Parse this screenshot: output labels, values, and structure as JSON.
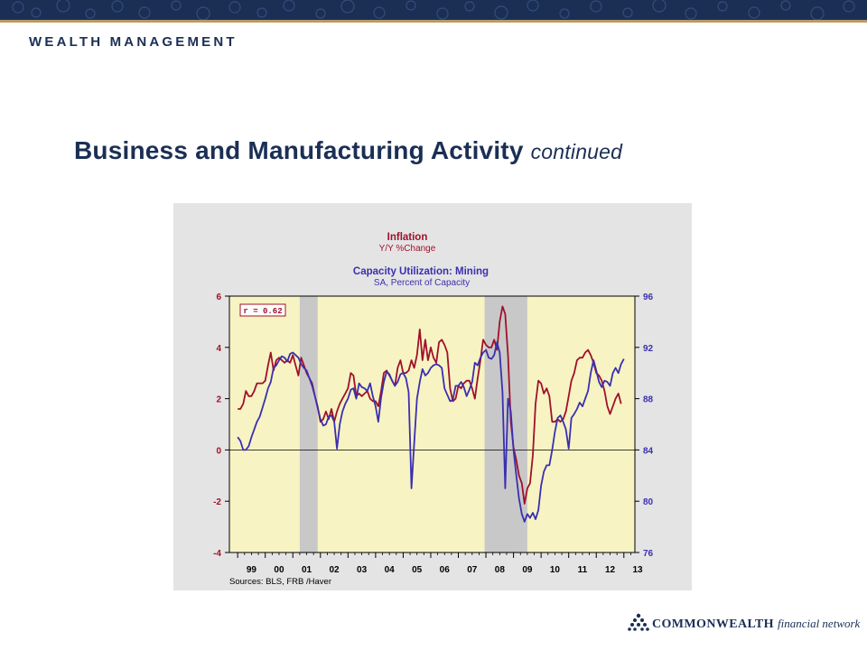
{
  "header": {
    "brand": "WEALTH MANAGEMENT"
  },
  "slide": {
    "title": "Business and Manufacturing Activity",
    "title_suffix": "continued"
  },
  "footer": {
    "company": "COMMONWEALTH",
    "tagline": "financial network"
  },
  "colors": {
    "navy": "#1b2f55",
    "inflation": "#a0102a",
    "capacity": "#3a2fb0",
    "plot_bg": "#f7f3c3",
    "recession": "#c8c8c8"
  },
  "chart_data": {
    "type": "line",
    "title": "Inflation",
    "subtitle": "Y/Y %Change",
    "title2": "Capacity Utilization: Mining",
    "subtitle2": "SA, Percent of Capacity",
    "annotation": "r = 0.62",
    "source": "Sources:  BLS, FRB /Haver",
    "x_tick_labels": [
      "99",
      "00",
      "01",
      "02",
      "03",
      "04",
      "05",
      "06",
      "07",
      "08",
      "09",
      "10",
      "11",
      "12",
      "13"
    ],
    "xlim": [
      1998.7,
      2013.4
    ],
    "left_axis": {
      "ylim": [
        -4,
        6
      ],
      "ticks": [
        "-4",
        "-2",
        "0",
        "2",
        "4",
        "6"
      ]
    },
    "right_axis": {
      "ylim": [
        76,
        96
      ],
      "ticks": [
        "76",
        "80",
        "84",
        "88",
        "92",
        "96"
      ]
    },
    "recession_shading": [
      [
        2001.25,
        2001.9
      ],
      [
        2007.95,
        2009.5
      ]
    ],
    "legend": "none",
    "series": [
      {
        "name": "Inflation",
        "axis": "left",
        "points": [
          [
            1999.0,
            1.6
          ],
          [
            1999.1,
            1.6
          ],
          [
            1999.2,
            1.8
          ],
          [
            1999.3,
            2.3
          ],
          [
            1999.4,
            2.1
          ],
          [
            1999.5,
            2.1
          ],
          [
            1999.6,
            2.3
          ],
          [
            1999.7,
            2.6
          ],
          [
            1999.9,
            2.6
          ],
          [
            2000.0,
            2.7
          ],
          [
            2000.1,
            3.3
          ],
          [
            2000.2,
            3.8
          ],
          [
            2000.3,
            3.1
          ],
          [
            2000.4,
            3.5
          ],
          [
            2000.5,
            3.6
          ],
          [
            2000.6,
            3.5
          ],
          [
            2000.7,
            3.4
          ],
          [
            2000.8,
            3.5
          ],
          [
            2000.9,
            3.4
          ],
          [
            2001.0,
            3.7
          ],
          [
            2001.1,
            3.3
          ],
          [
            2001.2,
            2.9
          ],
          [
            2001.3,
            3.6
          ],
          [
            2001.4,
            3.3
          ],
          [
            2001.5,
            3.0
          ],
          [
            2001.6,
            2.8
          ],
          [
            2001.7,
            2.6
          ],
          [
            2001.8,
            2.1
          ],
          [
            2001.9,
            1.7
          ],
          [
            2002.0,
            1.1
          ],
          [
            2002.1,
            1.2
          ],
          [
            2002.2,
            1.5
          ],
          [
            2002.3,
            1.2
          ],
          [
            2002.4,
            1.6
          ],
          [
            2002.5,
            1.1
          ],
          [
            2002.6,
            1.5
          ],
          [
            2002.7,
            1.8
          ],
          [
            2002.8,
            2.0
          ],
          [
            2002.9,
            2.2
          ],
          [
            2003.0,
            2.4
          ],
          [
            2003.1,
            3.0
          ],
          [
            2003.2,
            2.9
          ],
          [
            2003.3,
            2.1
          ],
          [
            2003.4,
            2.2
          ],
          [
            2003.5,
            2.1
          ],
          [
            2003.6,
            2.2
          ],
          [
            2003.7,
            2.3
          ],
          [
            2003.8,
            2.0
          ],
          [
            2003.9,
            1.9
          ],
          [
            2004.0,
            1.9
          ],
          [
            2004.1,
            1.7
          ],
          [
            2004.2,
            2.3
          ],
          [
            2004.3,
            3.0
          ],
          [
            2004.4,
            3.1
          ],
          [
            2004.5,
            2.9
          ],
          [
            2004.6,
            2.7
          ],
          [
            2004.7,
            2.5
          ],
          [
            2004.8,
            3.2
          ],
          [
            2004.9,
            3.5
          ],
          [
            2005.0,
            3.0
          ],
          [
            2005.1,
            3.0
          ],
          [
            2005.2,
            3.1
          ],
          [
            2005.3,
            3.5
          ],
          [
            2005.4,
            3.2
          ],
          [
            2005.5,
            3.7
          ],
          [
            2005.6,
            4.7
          ],
          [
            2005.7,
            3.5
          ],
          [
            2005.8,
            4.3
          ],
          [
            2005.9,
            3.5
          ],
          [
            2006.0,
            4.0
          ],
          [
            2006.1,
            3.6
          ],
          [
            2006.2,
            3.4
          ],
          [
            2006.3,
            4.2
          ],
          [
            2006.4,
            4.3
          ],
          [
            2006.5,
            4.1
          ],
          [
            2006.6,
            3.8
          ],
          [
            2006.7,
            2.4
          ],
          [
            2006.8,
            1.9
          ],
          [
            2006.9,
            2.0
          ],
          [
            2007.0,
            2.5
          ],
          [
            2007.1,
            2.4
          ],
          [
            2007.2,
            2.6
          ],
          [
            2007.3,
            2.7
          ],
          [
            2007.4,
            2.7
          ],
          [
            2007.5,
            2.4
          ],
          [
            2007.6,
            2.0
          ],
          [
            2007.7,
            2.8
          ],
          [
            2007.8,
            3.5
          ],
          [
            2007.9,
            4.3
          ],
          [
            2008.0,
            4.1
          ],
          [
            2008.1,
            4.0
          ],
          [
            2008.2,
            4.0
          ],
          [
            2008.3,
            4.3
          ],
          [
            2008.4,
            3.9
          ],
          [
            2008.5,
            5.0
          ],
          [
            2008.6,
            5.6
          ],
          [
            2008.7,
            5.3
          ],
          [
            2008.8,
            3.7
          ],
          [
            2008.9,
            1.1
          ],
          [
            2009.0,
            0.1
          ],
          [
            2009.1,
            -0.4
          ],
          [
            2009.2,
            -1.0
          ],
          [
            2009.3,
            -1.3
          ],
          [
            2009.4,
            -2.1
          ],
          [
            2009.5,
            -1.5
          ],
          [
            2009.6,
            -1.3
          ],
          [
            2009.7,
            -0.2
          ],
          [
            2009.8,
            1.8
          ],
          [
            2009.9,
            2.7
          ],
          [
            2010.0,
            2.6
          ],
          [
            2010.1,
            2.2
          ],
          [
            2010.2,
            2.4
          ],
          [
            2010.3,
            2.1
          ],
          [
            2010.4,
            1.1
          ],
          [
            2010.5,
            1.1
          ],
          [
            2010.6,
            1.2
          ],
          [
            2010.7,
            1.1
          ],
          [
            2010.8,
            1.2
          ],
          [
            2010.9,
            1.5
          ],
          [
            2011.0,
            2.1
          ],
          [
            2011.1,
            2.7
          ],
          [
            2011.2,
            3.0
          ],
          [
            2011.3,
            3.5
          ],
          [
            2011.4,
            3.6
          ],
          [
            2011.5,
            3.6
          ],
          [
            2011.6,
            3.8
          ],
          [
            2011.7,
            3.9
          ],
          [
            2011.8,
            3.7
          ],
          [
            2011.9,
            3.4
          ],
          [
            2012.0,
            3.0
          ],
          [
            2012.1,
            2.9
          ],
          [
            2012.2,
            2.7
          ],
          [
            2012.3,
            2.3
          ],
          [
            2012.4,
            1.7
          ],
          [
            2012.5,
            1.4
          ],
          [
            2012.6,
            1.7
          ],
          [
            2012.7,
            2.0
          ],
          [
            2012.8,
            2.2
          ],
          [
            2012.9,
            1.8
          ]
        ]
      },
      {
        "name": "Capacity Utilization: Mining",
        "axis": "right",
        "points": [
          [
            1999.0,
            85.0
          ],
          [
            1999.1,
            84.7
          ],
          [
            1999.2,
            84.0
          ],
          [
            1999.3,
            84.0
          ],
          [
            1999.4,
            84.3
          ],
          [
            1999.5,
            85.0
          ],
          [
            1999.6,
            85.6
          ],
          [
            1999.7,
            86.2
          ],
          [
            1999.8,
            86.6
          ],
          [
            1999.9,
            87.3
          ],
          [
            2000.0,
            88.0
          ],
          [
            2000.1,
            88.8
          ],
          [
            2000.2,
            89.3
          ],
          [
            2000.3,
            90.4
          ],
          [
            2000.4,
            90.6
          ],
          [
            2000.5,
            91.0
          ],
          [
            2000.6,
            91.3
          ],
          [
            2000.7,
            91.2
          ],
          [
            2000.8,
            90.9
          ],
          [
            2000.9,
            91.5
          ],
          [
            2001.0,
            91.6
          ],
          [
            2001.1,
            91.4
          ],
          [
            2001.2,
            91.2
          ],
          [
            2001.3,
            90.7
          ],
          [
            2001.4,
            90.4
          ],
          [
            2001.5,
            90.2
          ],
          [
            2001.6,
            89.6
          ],
          [
            2001.7,
            89.0
          ],
          [
            2001.8,
            88.2
          ],
          [
            2001.9,
            87.3
          ],
          [
            2002.0,
            86.4
          ],
          [
            2002.1,
            85.9
          ],
          [
            2002.2,
            86.0
          ],
          [
            2002.3,
            86.6
          ],
          [
            2002.4,
            86.7
          ],
          [
            2002.5,
            86.2
          ],
          [
            2002.6,
            84.1
          ],
          [
            2002.7,
            86.0
          ],
          [
            2002.8,
            87.0
          ],
          [
            2002.9,
            87.6
          ],
          [
            2003.0,
            88.0
          ],
          [
            2003.1,
            88.7
          ],
          [
            2003.2,
            88.8
          ],
          [
            2003.3,
            88.0
          ],
          [
            2003.4,
            89.2
          ],
          [
            2003.5,
            88.9
          ],
          [
            2003.6,
            88.8
          ],
          [
            2003.7,
            88.6
          ],
          [
            2003.8,
            89.2
          ],
          [
            2003.9,
            88.2
          ],
          [
            2004.0,
            87.4
          ],
          [
            2004.1,
            86.2
          ],
          [
            2004.2,
            88.1
          ],
          [
            2004.3,
            89.3
          ],
          [
            2004.4,
            90.1
          ],
          [
            2004.5,
            89.9
          ],
          [
            2004.6,
            89.4
          ],
          [
            2004.7,
            89.0
          ],
          [
            2004.8,
            89.3
          ],
          [
            2004.9,
            89.9
          ],
          [
            2005.0,
            90.0
          ],
          [
            2005.1,
            89.6
          ],
          [
            2005.2,
            88.5
          ],
          [
            2005.3,
            81.0
          ],
          [
            2005.4,
            84.5
          ],
          [
            2005.5,
            88.0
          ],
          [
            2005.6,
            89.3
          ],
          [
            2005.7,
            90.3
          ],
          [
            2005.8,
            89.8
          ],
          [
            2005.9,
            90.0
          ],
          [
            2006.0,
            90.4
          ],
          [
            2006.1,
            90.6
          ],
          [
            2006.2,
            90.7
          ],
          [
            2006.3,
            90.6
          ],
          [
            2006.4,
            90.4
          ],
          [
            2006.5,
            88.8
          ],
          [
            2006.6,
            88.3
          ],
          [
            2006.7,
            87.8
          ],
          [
            2006.8,
            87.9
          ],
          [
            2006.9,
            89.0
          ],
          [
            2007.0,
            89.0
          ],
          [
            2007.1,
            89.3
          ],
          [
            2007.2,
            88.9
          ],
          [
            2007.3,
            88.2
          ],
          [
            2007.4,
            88.7
          ],
          [
            2007.5,
            89.3
          ],
          [
            2007.6,
            90.8
          ],
          [
            2007.7,
            90.6
          ],
          [
            2007.8,
            91.2
          ],
          [
            2007.9,
            91.6
          ],
          [
            2008.0,
            91.8
          ],
          [
            2008.1,
            91.2
          ],
          [
            2008.2,
            91.1
          ],
          [
            2008.3,
            91.4
          ],
          [
            2008.4,
            92.4
          ],
          [
            2008.5,
            91.6
          ],
          [
            2008.6,
            88.5
          ],
          [
            2008.7,
            81.0
          ],
          [
            2008.8,
            88.0
          ],
          [
            2008.9,
            87.0
          ],
          [
            2009.0,
            84.0
          ],
          [
            2009.1,
            82.0
          ],
          [
            2009.2,
            80.2
          ],
          [
            2009.3,
            79.0
          ],
          [
            2009.4,
            78.4
          ],
          [
            2009.5,
            79.0
          ],
          [
            2009.6,
            78.7
          ],
          [
            2009.7,
            79.1
          ],
          [
            2009.8,
            78.6
          ],
          [
            2009.9,
            79.3
          ],
          [
            2010.0,
            81.2
          ],
          [
            2010.1,
            82.3
          ],
          [
            2010.2,
            82.8
          ],
          [
            2010.3,
            82.8
          ],
          [
            2010.4,
            84.0
          ],
          [
            2010.5,
            85.4
          ],
          [
            2010.6,
            86.5
          ],
          [
            2010.7,
            86.7
          ],
          [
            2010.8,
            86.2
          ],
          [
            2010.9,
            85.6
          ],
          [
            2011.0,
            84.1
          ],
          [
            2011.1,
            86.5
          ],
          [
            2011.2,
            86.8
          ],
          [
            2011.3,
            87.2
          ],
          [
            2011.4,
            87.7
          ],
          [
            2011.5,
            87.4
          ],
          [
            2011.6,
            88.0
          ],
          [
            2011.7,
            88.6
          ],
          [
            2011.8,
            90.0
          ],
          [
            2011.9,
            91.0
          ],
          [
            2012.0,
            90.2
          ],
          [
            2012.1,
            89.3
          ],
          [
            2012.2,
            88.9
          ],
          [
            2012.3,
            89.4
          ],
          [
            2012.4,
            89.3
          ],
          [
            2012.5,
            89.0
          ],
          [
            2012.6,
            90.0
          ],
          [
            2012.7,
            90.4
          ],
          [
            2012.8,
            90.0
          ],
          [
            2012.9,
            90.7
          ],
          [
            2013.0,
            91.1
          ]
        ]
      }
    ]
  }
}
